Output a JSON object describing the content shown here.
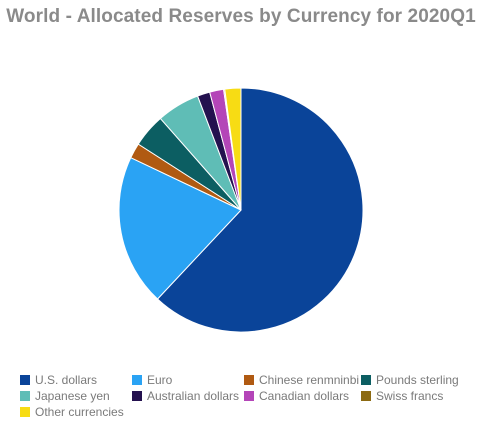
{
  "chart_data": {
    "type": "pie",
    "title": "World - Allocated Reserves by Currency for 2020Q1",
    "categories": [
      "U.S. dollars",
      "Euro",
      "Chinese renmninbi",
      "Pounds sterling",
      "Japanese yen",
      "Australian dollars",
      "Canadian dollars",
      "Swiss francs",
      "Other currencies"
    ],
    "values": [
      61.99,
      20.07,
      2.02,
      4.43,
      5.7,
      1.66,
      1.85,
      0.15,
      2.13
    ],
    "colors": [
      "#0a4499",
      "#2aa3f4",
      "#b05a12",
      "#0c5e62",
      "#5fbdb6",
      "#24114f",
      "#b445b8",
      "#8c6a12",
      "#f7dc14"
    ],
    "legend_position": "bottom",
    "start_angle": "12 o'clock, clockwise"
  }
}
